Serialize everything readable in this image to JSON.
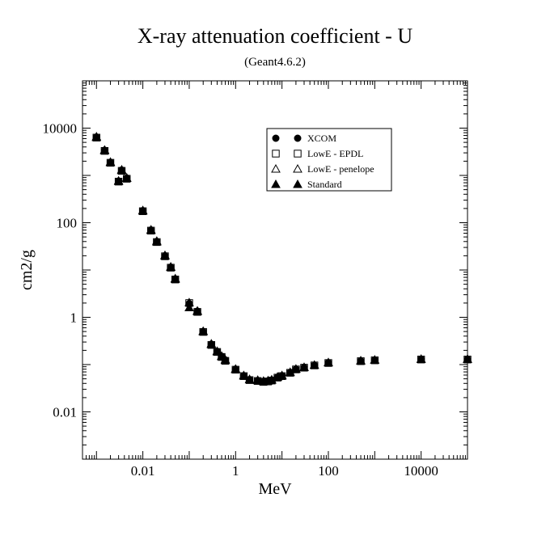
{
  "chart_data": {
    "type": "scatter",
    "title": "X-ray attenuation coefficient - U",
    "subtitle": "(Geant4.6.2)",
    "xlabel": "MeV",
    "ylabel": "cm2/g",
    "xscale": "log",
    "yscale": "log",
    "xlim": [
      0.0005,
      100000
    ],
    "ylim": [
      0.001,
      100000
    ],
    "x_ticks": [
      {
        "value": 0.01,
        "label": "0.01"
      },
      {
        "value": 1,
        "label": "1"
      },
      {
        "value": 100,
        "label": "100"
      },
      {
        "value": 10000,
        "label": "10000"
      }
    ],
    "y_ticks": [
      {
        "value": 0.01,
        "label": "0.01"
      },
      {
        "value": 1,
        "label": "1"
      },
      {
        "value": 100,
        "label": "100"
      },
      {
        "value": 10000,
        "label": "10000"
      }
    ],
    "legend_position": "upper-right inside plot",
    "grid": false,
    "series": [
      {
        "name": "XCOM",
        "marker": "circle-filled",
        "x": [
          0.001,
          0.0015,
          0.002,
          0.003,
          0.0035,
          0.0045,
          0.01,
          0.015,
          0.02,
          0.03,
          0.04,
          0.05,
          0.1,
          0.15,
          0.2,
          0.3,
          0.4,
          0.5,
          0.6,
          1.0,
          1.5,
          2.0,
          3.0,
          4.0,
          5.0,
          6.0,
          8.0,
          10,
          15,
          20,
          30,
          50,
          100,
          500,
          1000,
          10000,
          100000
        ],
        "y": [
          6500,
          3400,
          1900,
          760,
          1300,
          880,
          180,
          70,
          40,
          20,
          11.5,
          6.5,
          1.95,
          1.35,
          0.5,
          0.27,
          0.19,
          0.15,
          0.125,
          0.08,
          0.058,
          0.048,
          0.046,
          0.044,
          0.045,
          0.047,
          0.054,
          0.058,
          0.068,
          0.08,
          0.087,
          0.097,
          0.11,
          0.12,
          0.125,
          0.13,
          0.13
        ]
      },
      {
        "name": "LowE - EPDL",
        "marker": "square-open",
        "x": [
          0.001,
          0.0015,
          0.002,
          0.003,
          0.0035,
          0.0045,
          0.01,
          0.015,
          0.02,
          0.03,
          0.04,
          0.05,
          0.1,
          0.15,
          0.2,
          0.3,
          0.4,
          0.5,
          0.6,
          1.0,
          1.5,
          2.0,
          3.0,
          4.0,
          5.0,
          6.0,
          8.0,
          10,
          15,
          20,
          30,
          50,
          100,
          500,
          1000,
          10000,
          100000
        ],
        "y": [
          6300,
          3300,
          1850,
          740,
          1250,
          850,
          175,
          68,
          39,
          19.5,
          11.2,
          6.3,
          2.0,
          1.3,
          0.49,
          0.26,
          0.185,
          0.145,
          0.12,
          0.078,
          0.057,
          0.047,
          0.045,
          0.043,
          0.044,
          0.046,
          0.053,
          0.057,
          0.067,
          0.079,
          0.086,
          0.096,
          0.108,
          0.118,
          0.123,
          0.128,
          0.128
        ]
      },
      {
        "name": "LowE - penelope",
        "marker": "triangle-open",
        "x": [
          0.001,
          0.0015,
          0.002,
          0.003,
          0.0035,
          0.0045,
          0.01,
          0.015,
          0.02,
          0.03,
          0.04,
          0.05,
          0.1,
          0.15,
          0.2,
          0.3,
          0.4,
          0.5,
          0.6,
          1.0,
          1.5,
          2.0,
          3.0,
          4.0,
          5.0,
          6.0,
          8.0,
          10,
          15,
          20,
          30,
          50,
          100,
          500,
          1000,
          10000,
          100000
        ],
        "y": [
          6600,
          3450,
          1920,
          770,
          1320,
          890,
          182,
          71,
          41,
          20.5,
          11.7,
          6.6,
          2.05,
          1.37,
          0.51,
          0.275,
          0.192,
          0.152,
          0.127,
          0.081,
          0.059,
          0.049,
          0.047,
          0.045,
          0.046,
          0.048,
          0.055,
          0.059,
          0.069,
          0.081,
          0.088,
          0.098,
          0.111,
          0.121,
          0.126,
          0.131,
          0.131
        ]
      },
      {
        "name": "Standard",
        "marker": "triangle-filled",
        "x": [
          0.001,
          0.0015,
          0.002,
          0.003,
          0.0035,
          0.0045,
          0.01,
          0.015,
          0.02,
          0.03,
          0.04,
          0.05,
          0.1,
          0.15,
          0.2,
          0.3,
          0.4,
          0.5,
          0.6,
          1.0,
          1.5,
          2.0,
          3.0,
          4.0,
          5.0,
          6.0,
          8.0,
          10,
          15,
          20,
          30,
          50,
          100,
          500,
          1000,
          10000,
          100000
        ],
        "y": [
          6400,
          3350,
          1880,
          750,
          1280,
          870,
          178,
          69,
          39.5,
          19.8,
          11.4,
          6.4,
          1.6,
          1.33,
          0.5,
          0.268,
          0.188,
          0.148,
          0.123,
          0.079,
          0.058,
          0.048,
          0.046,
          0.044,
          0.045,
          0.047,
          0.054,
          0.058,
          0.068,
          0.08,
          0.087,
          0.097,
          0.11,
          0.12,
          0.125,
          0.13,
          0.13
        ]
      }
    ]
  }
}
